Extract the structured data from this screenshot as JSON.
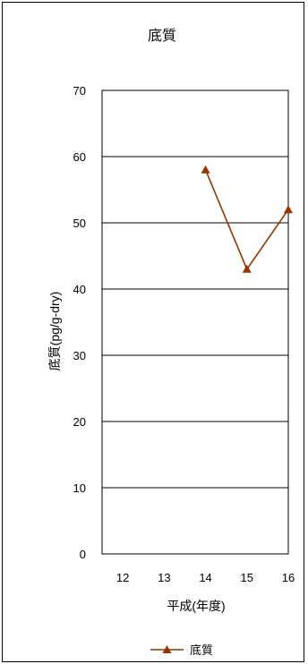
{
  "chart_data": {
    "type": "line",
    "title": "底質",
    "xlabel": "平成(年度)",
    "ylabel": "底質(pg/g-dry)",
    "categories": [
      "12",
      "13",
      "14",
      "15",
      "16"
    ],
    "ylim": [
      0,
      70
    ],
    "yticks": [
      "0",
      "10",
      "20",
      "30",
      "40",
      "50",
      "60",
      "70"
    ],
    "grid": true,
    "legend_position": "bottom",
    "series": [
      {
        "name": "底質",
        "values": [
          null,
          null,
          58,
          43,
          52
        ],
        "color": "#993300",
        "marker": "triangle"
      }
    ]
  }
}
